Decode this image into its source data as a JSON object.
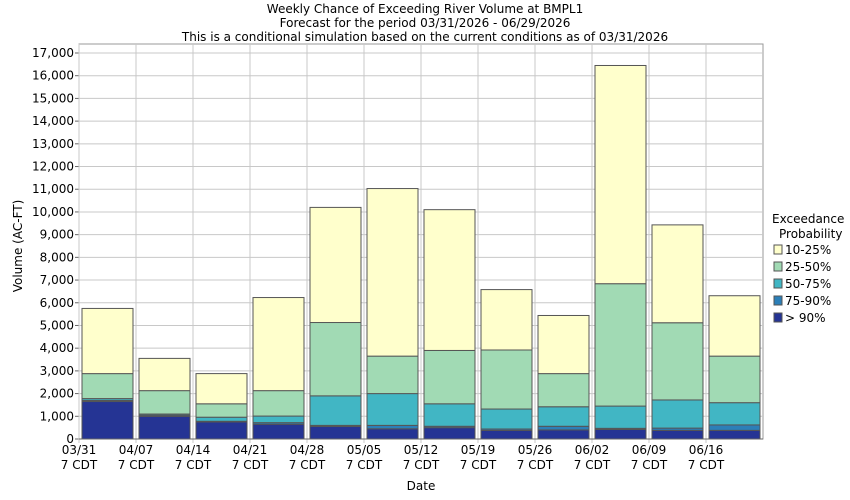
{
  "chart_data": {
    "type": "bar",
    "stacked": true,
    "title": [
      "Weekly Chance of Exceeding River Volume at BMPL1",
      "Forecast for the period 03/31/2026 - 06/29/2026",
      "This is a conditional simulation based on the current conditions as of 03/31/2026"
    ],
    "xlabel": "Date",
    "ylabel": "Volume (AC-FT)",
    "ylim": [
      0,
      17000
    ],
    "yticks": [
      0,
      1000,
      2000,
      3000,
      4000,
      5000,
      6000,
      7000,
      8000,
      9000,
      10000,
      11000,
      12000,
      13000,
      14000,
      15000,
      16000,
      17000
    ],
    "ytick_labels": [
      "0",
      "1,000",
      "2,000",
      "3,000",
      "4,000",
      "5,000",
      "6,000",
      "7,000",
      "8,000",
      "9,000",
      "10,000",
      "11,000",
      "12,000",
      "13,000",
      "14,000",
      "15,000",
      "16,000",
      "17,000"
    ],
    "categories": [
      "03/31",
      "04/07",
      "04/14",
      "04/21",
      "04/28",
      "05/05",
      "05/12",
      "05/19",
      "05/26",
      "06/02",
      "06/09",
      "06/16"
    ],
    "tick_sublabel": "7 CDT",
    "grid": true,
    "legend": {
      "title": [
        "Exceedance",
        "Probability"
      ],
      "placement": "right"
    },
    "series": [
      {
        "name": "> 90%",
        "color": "#253494",
        "values": [
          1650,
          1000,
          750,
          650,
          550,
          450,
          500,
          380,
          400,
          420,
          380,
          380
        ]
      },
      {
        "name": "75-90%",
        "color": "#2c7fb8",
        "values": [
          50,
          50,
          30,
          70,
          50,
          150,
          60,
          60,
          160,
          50,
          100,
          240
        ]
      },
      {
        "name": "50-75%",
        "color": "#41b6c4",
        "values": [
          80,
          50,
          180,
          290,
          1300,
          1400,
          990,
          880,
          860,
          980,
          1240,
          980
        ]
      },
      {
        "name": "25-50%",
        "color": "#a1dab4",
        "values": [
          1100,
          1030,
          590,
          1120,
          3230,
          1650,
          2350,
          2600,
          1460,
          5390,
          3400,
          2050
        ]
      },
      {
        "name": "10-25%",
        "color": "#ffffcc",
        "values": [
          2870,
          1420,
          1330,
          4100,
          5070,
          7380,
          6200,
          2660,
          2560,
          9610,
          4310,
          2660
        ]
      }
    ]
  }
}
